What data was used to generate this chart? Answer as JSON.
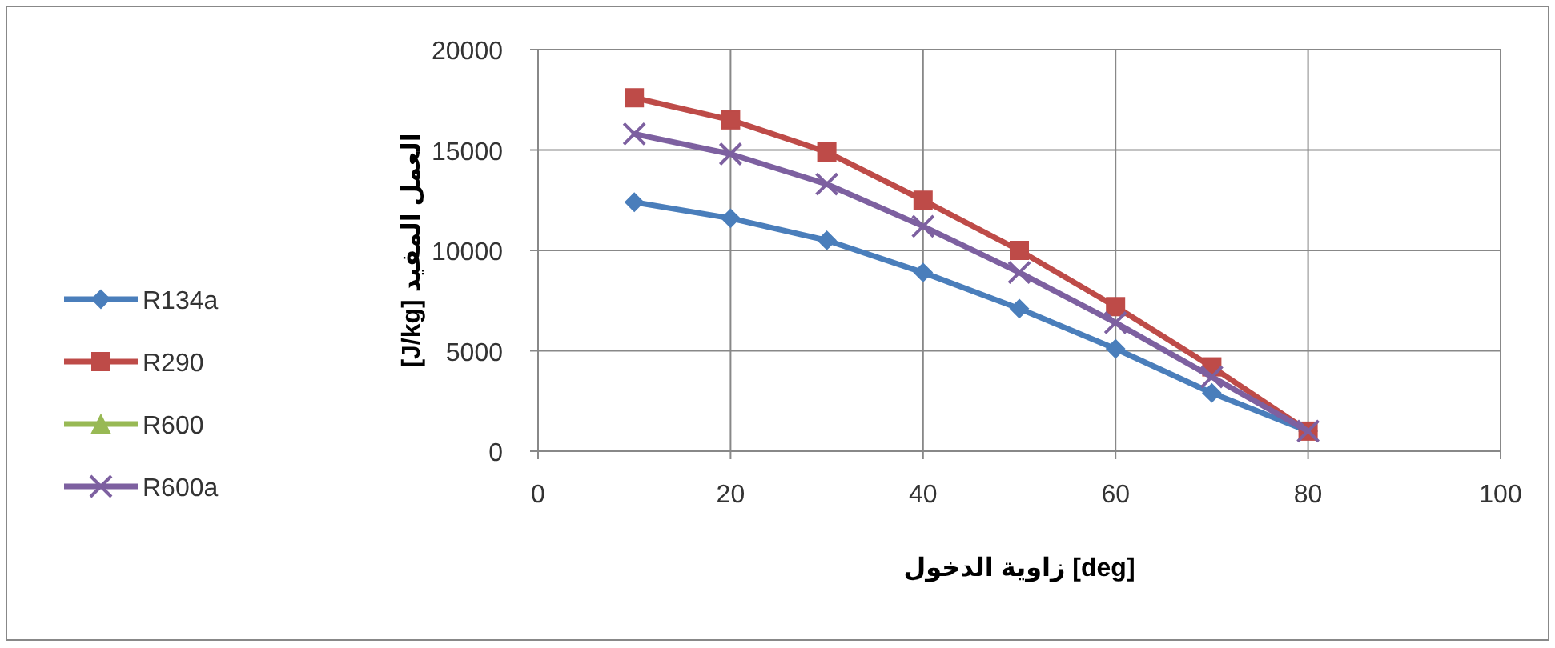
{
  "chart_data": {
    "type": "line",
    "xlabel": "زاوية الدخول [deg]",
    "ylabel": "[J/kg] العمل المفيد",
    "x": [
      10,
      20,
      30,
      40,
      50,
      60,
      70,
      80
    ],
    "series": [
      {
        "name": "R134a",
        "color": "#4a7ebb",
        "marker": "diamond",
        "values": [
          12400,
          11600,
          10500,
          8900,
          7100,
          5100,
          2900,
          1000
        ]
      },
      {
        "name": "R290",
        "color": "#be4b48",
        "marker": "square",
        "values": [
          17600,
          16500,
          14900,
          12500,
          10000,
          7200,
          4200,
          1000
        ]
      },
      {
        "name": "R600",
        "color": "#98b954",
        "marker": "triangle",
        "values": [
          null,
          null,
          null,
          null,
          null,
          null,
          null,
          null
        ]
      },
      {
        "name": "R600a",
        "color": "#7d60a0",
        "marker": "cross",
        "values": [
          15800,
          14800,
          13300,
          11200,
          8900,
          6400,
          3700,
          1000
        ]
      }
    ],
    "xlim": [
      0,
      100
    ],
    "xticks": [
      0,
      20,
      40,
      60,
      80,
      100
    ],
    "ylim": [
      0,
      20000
    ],
    "yticks": [
      0,
      5000,
      10000,
      15000,
      20000
    ],
    "grid": true,
    "legend": "left",
    "line_style": "solid"
  }
}
